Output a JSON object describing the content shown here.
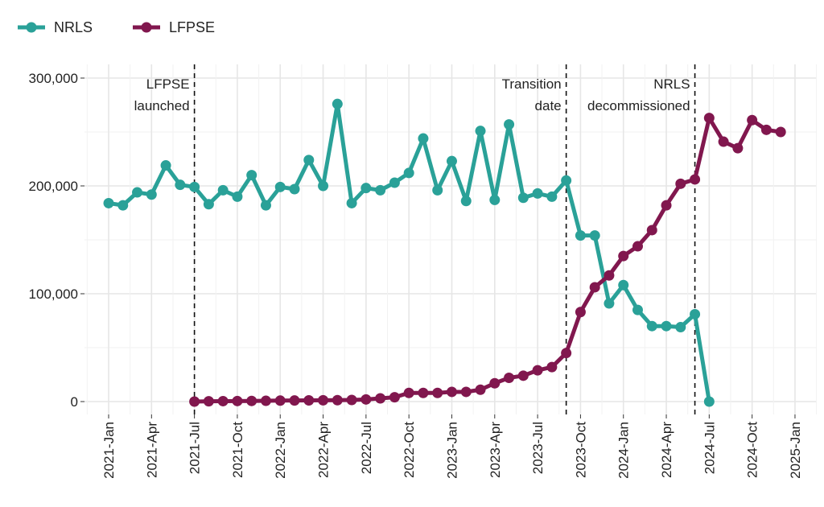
{
  "chart_data": {
    "type": "line",
    "title": "",
    "xlabel": "",
    "ylabel": "",
    "ylim": [
      0,
      300000
    ],
    "y_ticks": [
      0,
      100000,
      200000,
      300000
    ],
    "y_tick_labels": [
      "0",
      "100,000",
      "200,000",
      "300,000"
    ],
    "x_start": "2021-01",
    "x_tick_labels": [
      "2021-Jan",
      "2021-Apr",
      "2021-Jul",
      "2021-Oct",
      "2022-Jan",
      "2022-Apr",
      "2022-Jul",
      "2022-Oct",
      "2023-Jan",
      "2023-Apr",
      "2023-Jul",
      "2023-Oct",
      "2024-Jan",
      "2024-Apr",
      "2024-Jul",
      "2024-Oct",
      "2025-Jan"
    ],
    "grid": true,
    "legend_position": "top-left",
    "series": [
      {
        "name": "NRLS",
        "color": "#2aa198",
        "start_month_index": 0,
        "values": [
          184000,
          182000,
          194000,
          192000,
          219000,
          201000,
          199000,
          183000,
          196000,
          190000,
          210000,
          182000,
          199000,
          197000,
          224000,
          200000,
          276000,
          184000,
          198000,
          196000,
          203000,
          212000,
          244000,
          196000,
          223000,
          186000,
          251000,
          187000,
          257000,
          189000,
          193000,
          190000,
          205000,
          154000,
          154000,
          91000,
          108000,
          85000,
          70000,
          70000,
          69000,
          81000,
          0
        ]
      },
      {
        "name": "LFPSE",
        "color": "#81174e",
        "start_month_index": 6,
        "values": [
          0,
          300,
          400,
          500,
          600,
          700,
          900,
          1000,
          1100,
          1200,
          1300,
          1500,
          2000,
          3000,
          4000,
          8000,
          8000,
          8000,
          9000,
          9000,
          11000,
          17000,
          22000,
          24000,
          29000,
          32000,
          45000,
          83000,
          106000,
          117000,
          135000,
          144000,
          159000,
          182000,
          202000,
          206000,
          263000,
          241000,
          235000,
          261000,
          252000,
          250000
        ]
      }
    ],
    "annotations": [
      {
        "month_index": 6,
        "lines": [
          "LFPSE",
          "launched"
        ]
      },
      {
        "month_index": 32,
        "lines": [
          "Transition",
          "date"
        ]
      },
      {
        "month_index": 41,
        "lines": [
          "NRLS",
          "decommissioned"
        ]
      }
    ]
  }
}
